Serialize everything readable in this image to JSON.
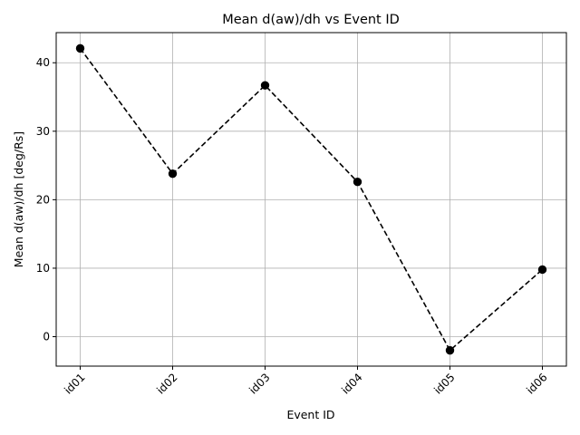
{
  "chart_data": {
    "type": "line",
    "title": "Mean d(aw)/dh vs Event ID",
    "xlabel": "Event ID",
    "ylabel": "Mean d(aw)/dh [deg/Rs]",
    "categories": [
      "id01",
      "id02",
      "id03",
      "id04",
      "id05",
      "id06"
    ],
    "values": [
      42.1,
      23.8,
      36.7,
      22.6,
      -2.0,
      9.8
    ],
    "ylim": [
      -4.3,
      44.4
    ],
    "yticks": [
      0,
      10,
      20,
      30,
      40
    ],
    "ytick_labels": [
      "0",
      "10",
      "20",
      "30",
      "40"
    ],
    "grid": true,
    "line_style": "dashed",
    "marker": "circle",
    "color": "#000000",
    "xtick_rotation": 45
  }
}
